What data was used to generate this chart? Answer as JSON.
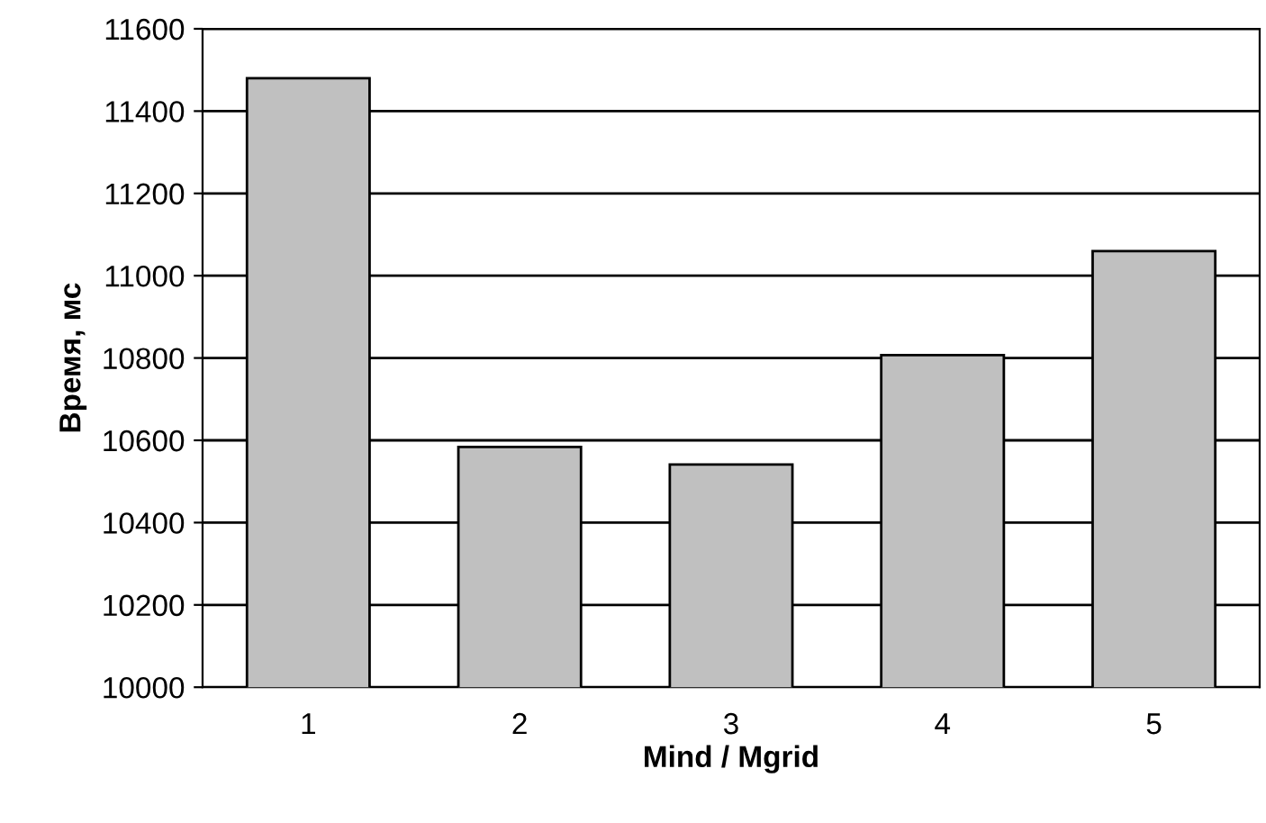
{
  "chart_data": {
    "type": "bar",
    "xlabel": "Mind / Mgrid",
    "ylabel": "Время, мс",
    "categories": [
      "1",
      "2",
      "3",
      "4",
      "5"
    ],
    "values": [
      11480,
      10584,
      10541,
      10807,
      11060
    ],
    "color": "#c0c0c0",
    "ylim": [
      10000,
      11600
    ],
    "yticks": [
      10000,
      10200,
      10400,
      10600,
      10800,
      11000,
      11200,
      11400,
      11600
    ],
    "grid": "y",
    "legend": false
  }
}
